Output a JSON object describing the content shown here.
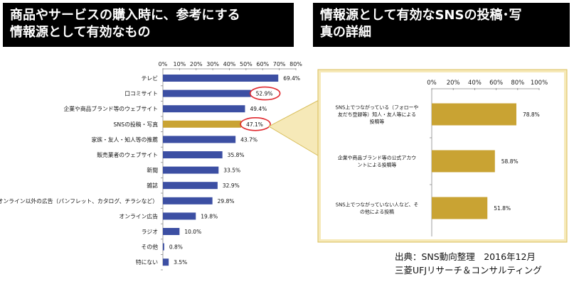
{
  "header_left": {
    "line1": "商品やサービスの購入時に、参考にする",
    "line2": "情報源として有効なもの"
  },
  "header_right": {
    "line1": "情報源として有効なSNSの投稿･写",
    "line2": "真の詳細"
  },
  "source": {
    "line1": "出典：SNS動向整理　2016年12月",
    "line2": "三菱UFJリサーチ＆コンサルティング"
  },
  "colors": {
    "left_bar": "#3c4fa3",
    "right_bar": "#c9a333",
    "panel_fill": "#f6e9b8",
    "panel_border": "#d9bf5c",
    "circle": "#e0282e"
  },
  "chart_data": [
    {
      "type": "bar",
      "orientation": "horizontal",
      "ticks": [
        "0%",
        "10%",
        "20%",
        "30%",
        "40%",
        "50%",
        "60%",
        "70%",
        "80%"
      ],
      "xlim": [
        0,
        80
      ],
      "categories": [
        "テレビ",
        "口コミサイト",
        "企業や商品ブランド等のウェブサイト",
        "SNSの投稿・写真",
        "家族・友人・知人等の推薦",
        "販売業者のウェブサイト",
        "新聞",
        "雑誌",
        "オンライン以外の広告（パンフレット、カタログ、チラシなど）",
        "オンライン広告",
        "ラジオ",
        "その他",
        "特にない"
      ],
      "values": [
        69.4,
        52.9,
        49.4,
        47.1,
        43.7,
        35.8,
        33.5,
        32.9,
        29.8,
        19.8,
        10.0,
        0.8,
        3.5
      ],
      "value_labels": [
        "69.4%",
        "52.9%",
        "49.4%",
        "47.1%",
        "43.7%",
        "35.8%",
        "33.5%",
        "32.9%",
        "29.8%",
        "19.8%",
        "10.0%",
        "0.8%",
        "3.5%"
      ],
      "highlighted": [
        "口コミサイト",
        "SNSの投稿・写真"
      ],
      "highlight_bar": "SNSの投稿・写真"
    },
    {
      "type": "bar",
      "orientation": "horizontal",
      "ticks": [
        "0%",
        "20%",
        "40%",
        "60%",
        "80%",
        "100%"
      ],
      "xlim": [
        0,
        100
      ],
      "categories": [
        [
          "SNS上でつながっている（フォローや",
          "友だち登録等）知人・友人等による",
          "投稿等"
        ],
        [
          "企業や商品ブランド等の公式アカウ",
          "ントによる投稿等"
        ],
        [
          "SNS上でつながっていない人など、そ",
          "の他による投稿"
        ]
      ],
      "values": [
        78.8,
        58.8,
        51.8
      ],
      "value_labels": [
        "78.8%",
        "58.8%",
        "51.8%"
      ]
    }
  ]
}
